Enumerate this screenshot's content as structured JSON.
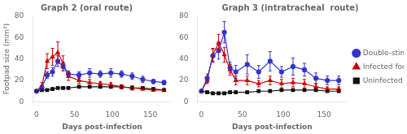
{
  "chart_data": [
    {
      "type": "line",
      "title": "Graph 2 (oral route)",
      "xlabel": "Days post-infection",
      "ylabel": "Footpad size (mm³)",
      "xlim": [
        -5,
        178
      ],
      "xticks": [
        0,
        50,
        100,
        150
      ],
      "ylim": [
        0,
        80
      ],
      "yticks": [
        0,
        20,
        40,
        60,
        80
      ],
      "grid": false,
      "x": [
        0,
        7,
        14,
        21,
        28,
        35,
        42,
        56,
        70,
        84,
        98,
        112,
        126,
        140,
        154,
        168
      ],
      "series": [
        {
          "name": "Double-stimuli",
          "color": "#3333cc",
          "marker": "circle",
          "values": [
            10,
            13,
            25,
            28,
            38,
            33,
            26,
            25,
            27,
            26,
            27,
            26,
            24,
            21,
            19,
            18
          ],
          "errors": [
            0,
            2,
            3,
            4,
            5,
            4,
            3,
            3,
            4,
            3,
            4,
            3,
            3,
            3,
            2,
            2
          ]
        },
        {
          "name": "Infected footpad",
          "color": "#cc0000",
          "marker": "triangle",
          "values": [
            10,
            15,
            38,
            42,
            46,
            36,
            24,
            20,
            18,
            17,
            16,
            14,
            13,
            12,
            11,
            11
          ],
          "errors": [
            0,
            3,
            7,
            8,
            10,
            7,
            4,
            3,
            3,
            2,
            2,
            2,
            2,
            1,
            1,
            1
          ]
        },
        {
          "name": "Uninfected footpad",
          "color": "#111111",
          "marker": "square",
          "values": [
            10,
            11,
            11,
            12,
            13,
            13,
            13,
            14,
            14,
            14,
            14,
            14,
            13,
            13,
            12,
            11
          ],
          "errors": [
            0,
            1,
            1,
            1,
            1,
            1,
            1,
            1,
            1,
            1,
            1,
            1,
            1,
            1,
            1,
            1
          ]
        }
      ]
    },
    {
      "type": "line",
      "title": "Graph 3 (intratracheal  route)",
      "xlabel": "Days post-infection",
      "xlim": [
        -5,
        178
      ],
      "xticks": [
        0,
        50,
        100,
        150
      ],
      "ylim": [
        0,
        80
      ],
      "yticks": [
        0,
        20,
        40,
        60,
        80
      ],
      "grid": false,
      "legend": "right",
      "x": [
        0,
        7,
        14,
        21,
        28,
        35,
        42,
        56,
        70,
        84,
        98,
        112,
        126,
        140,
        154,
        168
      ],
      "series": [
        {
          "name": "Double-stimuli",
          "color": "#3333cc",
          "marker": "circle",
          "values": [
            10,
            22,
            43,
            48,
            65,
            32,
            28,
            35,
            28,
            38,
            28,
            33,
            30,
            22,
            20,
            20
          ],
          "errors": [
            0,
            4,
            6,
            8,
            10,
            5,
            6,
            9,
            6,
            9,
            5,
            8,
            6,
            5,
            4,
            4
          ]
        },
        {
          "name": "Infected footpad",
          "color": "#cc0000",
          "marker": "triangle",
          "values": [
            10,
            20,
            44,
            55,
            44,
            30,
            20,
            20,
            17,
            20,
            17,
            18,
            17,
            14,
            12,
            12
          ],
          "errors": [
            0,
            3,
            6,
            8,
            7,
            5,
            4,
            4,
            3,
            4,
            4,
            4,
            4,
            3,
            2,
            2
          ]
        },
        {
          "name": "Uninfected footpad",
          "color": "#111111",
          "marker": "square",
          "values": [
            10,
            9,
            8,
            8,
            8,
            9,
            9,
            9,
            10,
            10,
            11,
            11,
            11,
            11,
            10,
            10
          ],
          "errors": [
            0,
            1,
            1,
            1,
            1,
            1,
            1,
            1,
            1,
            1,
            1,
            1,
            1,
            1,
            1,
            1
          ]
        }
      ]
    }
  ]
}
